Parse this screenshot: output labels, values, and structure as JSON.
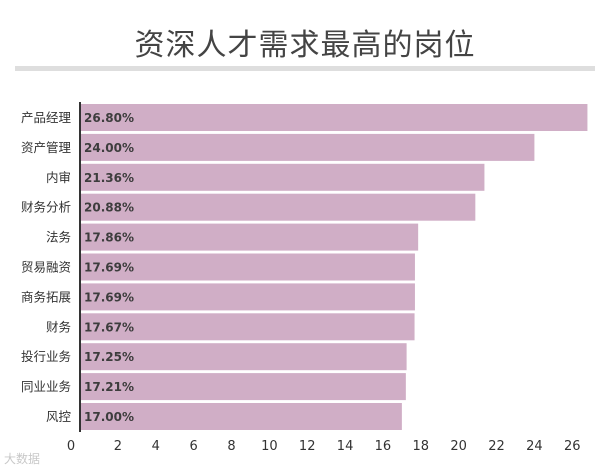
{
  "title": "资深人才需求最高的岗位",
  "watermark": "大数据",
  "colors": {
    "bar": "#d0aec6",
    "axis": "#333333",
    "title": "#444444",
    "text": "#333333"
  },
  "chart_data": {
    "type": "bar",
    "orientation": "horizontal",
    "categories": [
      "产品经理",
      "资产管理",
      "内审",
      "财务分析",
      "法务",
      "贸易融资",
      "商务拓展",
      "财务",
      "投行业务",
      "同业业务",
      "风控"
    ],
    "values": [
      26.8,
      24.0,
      21.36,
      20.88,
      17.86,
      17.69,
      17.69,
      17.67,
      17.25,
      17.21,
      17.0
    ],
    "data_labels": [
      "26.80%",
      "24.00%",
      "21.36%",
      "20.88%",
      "17.86%",
      "17.69%",
      "17.69%",
      "17.67%",
      "17.25%",
      "17.21%",
      "17.00%"
    ],
    "x_ticks": [
      0,
      2,
      4,
      6,
      8,
      10,
      12,
      14,
      16,
      18,
      20,
      22,
      24,
      26
    ],
    "xlim": [
      0,
      27.2
    ],
    "grid": false
  }
}
